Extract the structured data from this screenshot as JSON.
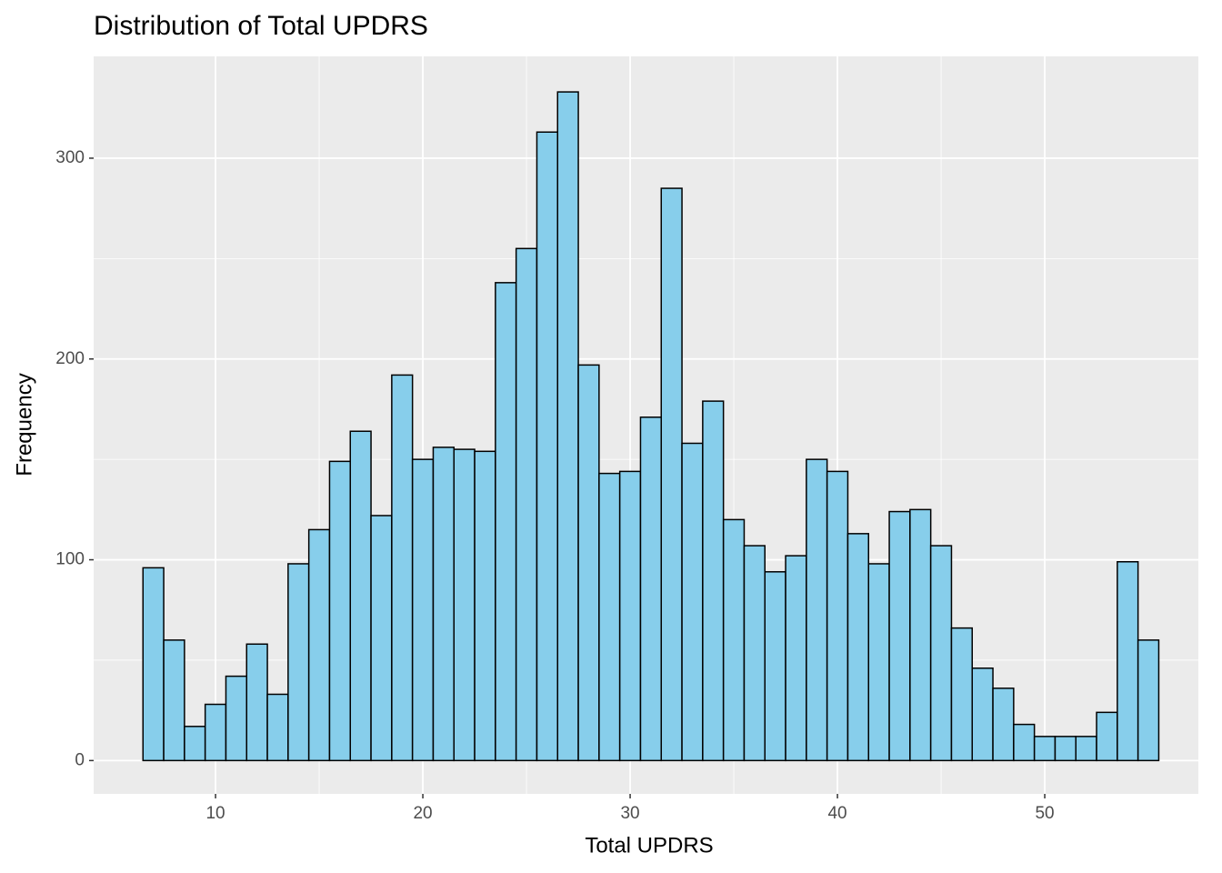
{
  "chart_data": {
    "type": "histogram",
    "title": "Distribution of Total UPDRS",
    "x_label": "Total UPDRS",
    "y_label": "Frequency",
    "bins": [
      6.5,
      7.5,
      8.5,
      9.5,
      10.5,
      11.5,
      12.5,
      13.5,
      14.5,
      15.5,
      16.5,
      17.5,
      18.5,
      19.5,
      20.5,
      21.5,
      22.5,
      23.5,
      24.5,
      25.5,
      26.5,
      27.5,
      28.5,
      29.5,
      30.5,
      31.5,
      32.5,
      33.5,
      34.5,
      35.5,
      36.5,
      37.5,
      38.5,
      39.5,
      40.5,
      41.5,
      42.5,
      43.5,
      44.5,
      45.5,
      46.5,
      47.5,
      48.5,
      49.5,
      50.5,
      51.5,
      52.5,
      53.5,
      54.5,
      55.5
    ],
    "values": [
      96,
      60,
      17,
      28,
      42,
      58,
      33,
      98,
      115,
      149,
      164,
      122,
      192,
      150,
      156,
      155,
      154,
      238,
      255,
      313,
      333,
      197,
      143,
      144,
      171,
      285,
      158,
      179,
      120,
      107,
      94,
      102,
      150,
      144,
      113,
      98,
      124,
      125,
      107,
      66,
      46,
      36,
      18,
      12,
      12,
      12,
      24,
      99,
      60
    ],
    "color": "#87ceeb",
    "edgecolor": "#000000",
    "xlim": [
      4.12,
      57.41
    ],
    "xticks": [
      10,
      20,
      30,
      40,
      50
    ],
    "ylim": [
      -16.6,
      350.7
    ],
    "yticks": [
      0,
      100,
      200,
      300
    ],
    "grid": true
  }
}
